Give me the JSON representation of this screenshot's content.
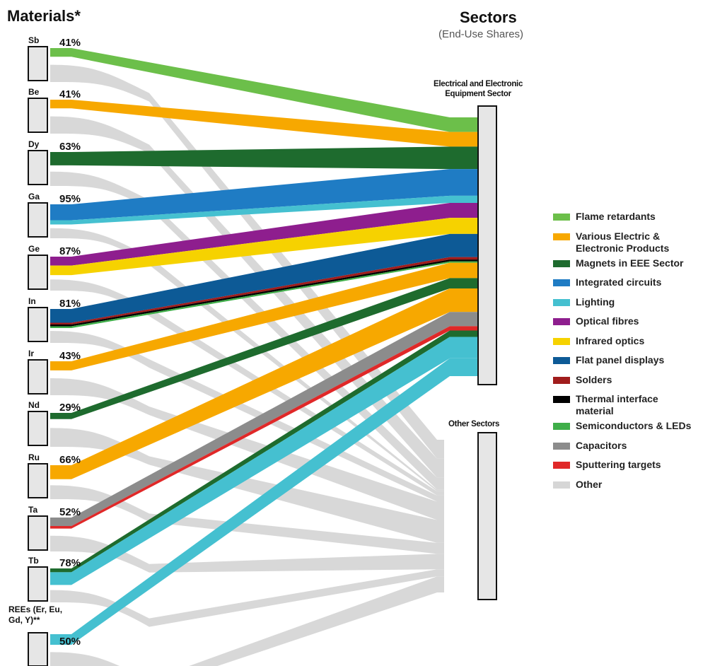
{
  "header": {
    "materials_title": "Materials*",
    "sectors_title": "Sectors",
    "sectors_subtitle": "(End-Use Shares)"
  },
  "sector_labels": {
    "eee": "Electrical and Electronic Equipment Sector",
    "other": "Other Sectors"
  },
  "colors": {
    "Flame retardants": "#6cbf4a",
    "Various Electric & Electronic Products": "#f7a800",
    "Magnets in EEE Sector": "#1e6b2e",
    "Integrated circuits": "#1f7cc4",
    "Lighting": "#45c0d0",
    "Optical fibres": "#8e1e8e",
    "Infrared optics": "#f6d200",
    "Flat panel displays": "#0d5a96",
    "Solders": "#a01c1c",
    "Thermal interface material": "#000000",
    "Semiconductors & LEDs": "#3fae49",
    "Capacitors": "#8c8c8c",
    "Sputtering targets": "#e02828",
    "Other": "#d6d6d6",
    "box_fill": "#e6e6e6",
    "box_stroke": "#111111"
  },
  "legend": [
    {
      "key": "Flame retardants",
      "label": "Flame retardants"
    },
    {
      "key": "Various Electric & Electronic Products",
      "label": "Various Electric & Electronic Products"
    },
    {
      "key": "Magnets in EEE Sector",
      "label": "Magnets in EEE Sector"
    },
    {
      "key": "Integrated circuits",
      "label": "Integrated circuits"
    },
    {
      "key": "Lighting",
      "label": "Lighting"
    },
    {
      "key": "Optical fibres",
      "label": "Optical fibres"
    },
    {
      "key": "Infrared optics",
      "label": "Infrared optics"
    },
    {
      "key": "Flat panel displays",
      "label": "Flat panel displays"
    },
    {
      "key": "Solders",
      "label": "Solders"
    },
    {
      "key": "Thermal interface material",
      "label": "Thermal interface material"
    },
    {
      "key": "Semiconductors & LEDs",
      "label": "Semiconductors & LEDs"
    },
    {
      "key": "Capacitors",
      "label": "Capacitors"
    },
    {
      "key": "Sputtering targets",
      "label": "Sputtering targets"
    },
    {
      "key": "Other",
      "label": "Other"
    }
  ],
  "materials": [
    {
      "symbol": "Sb",
      "eee_share": "41%",
      "flows": [
        {
          "use": "Flame retardants",
          "share": 41
        }
      ]
    },
    {
      "symbol": "Be",
      "eee_share": "41%",
      "flows": [
        {
          "use": "Various Electric & Electronic Products",
          "share": 41
        }
      ]
    },
    {
      "symbol": "Dy",
      "eee_share": "63%",
      "flows": [
        {
          "use": "Magnets in EEE Sector",
          "share": 63
        }
      ]
    },
    {
      "symbol": "Ga",
      "eee_share": "95%",
      "flows": [
        {
          "use": "Integrated circuits",
          "share": 75
        },
        {
          "use": "Lighting",
          "share": 20
        }
      ]
    },
    {
      "symbol": "Ge",
      "eee_share": "87%",
      "flows": [
        {
          "use": "Optical fibres",
          "share": 42
        },
        {
          "use": "Infrared optics",
          "share": 45
        }
      ]
    },
    {
      "symbol": "In",
      "eee_share": "81%",
      "flows": [
        {
          "use": "Flat panel displays",
          "share": 65
        },
        {
          "use": "Solders",
          "share": 7
        },
        {
          "use": "Thermal interface material",
          "share": 5
        },
        {
          "use": "Semiconductors & LEDs",
          "share": 4
        }
      ]
    },
    {
      "symbol": "Ir",
      "eee_share": "43%",
      "flows": [
        {
          "use": "Various Electric & Electronic Products",
          "share": 43
        }
      ]
    },
    {
      "symbol": "Nd",
      "eee_share": "29%",
      "flows": [
        {
          "use": "Magnets in EEE Sector",
          "share": 29
        }
      ]
    },
    {
      "symbol": "Ru",
      "eee_share": "66%",
      "flows": [
        {
          "use": "Various Electric & Electronic Products",
          "share": 66
        }
      ]
    },
    {
      "symbol": "Ta",
      "eee_share": "52%",
      "flows": [
        {
          "use": "Capacitors",
          "share": 40
        },
        {
          "use": "Sputtering targets",
          "share": 12
        }
      ]
    },
    {
      "symbol": "Tb",
      "eee_share": "78%",
      "flows": [
        {
          "use": "Magnets in EEE Sector",
          "share": 18
        },
        {
          "use": "Lighting",
          "share": 60
        }
      ]
    },
    {
      "symbol": "REEs (Er, Eu, Gd, Y)**",
      "eee_share": "50%",
      "flows": [
        {
          "use": "Lighting",
          "share": 50
        }
      ]
    }
  ]
}
